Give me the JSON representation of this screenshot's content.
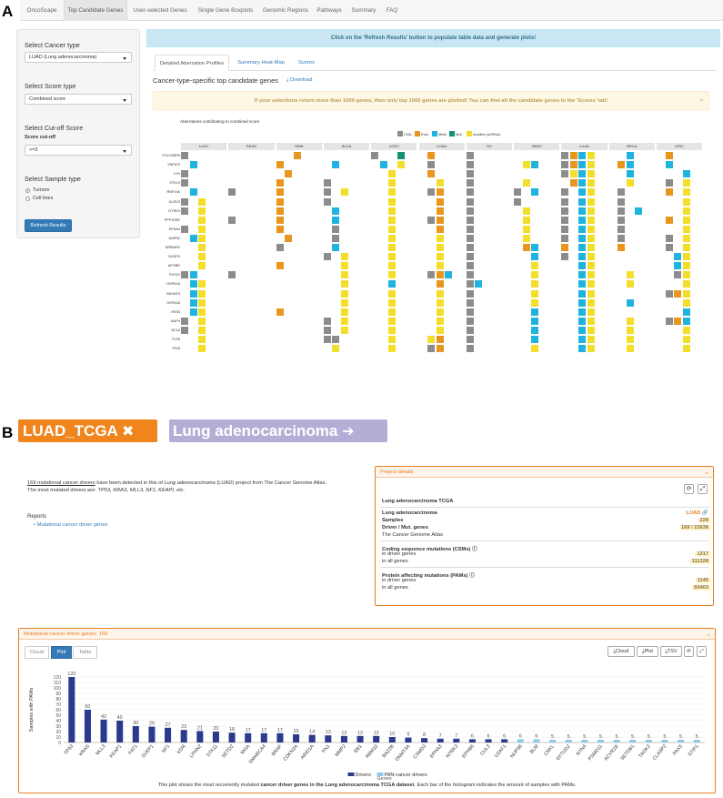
{
  "panel_a_letter": "A",
  "panel_b_letter": "B",
  "nav": [
    "OncoScape",
    "Top Candidate Genes",
    "User-selected Genes",
    "Single Gene Boxplots",
    "Genomic Regions",
    "Pathways",
    "Summary",
    "FAQ"
  ],
  "nav_active": 1,
  "sidebar": {
    "cancer_type_label": "Select Cancer type",
    "cancer_type_value": "LUAD (Lung adenocarcinoma)",
    "score_type_label": "Select Score type",
    "score_type_value": "Combined score",
    "cutoff_label": "Select Cut-off Score",
    "cutoff_sub": "Score cut-off",
    "cutoff_value": ">=3",
    "sample_type_label": "Select Sample type",
    "sample_options": [
      "Tumors",
      "Cell lines"
    ],
    "refresh_label": "Refresh Results"
  },
  "info_bar": "Click on the 'Refresh Results' button to populate table data and generate plots!",
  "subtabs": [
    "Detailed Aberration Profiles",
    "Summary Heat-Map",
    "Scores"
  ],
  "heatmap_title": "Cancer-type-specific top candidate genes",
  "download_label": "Download",
  "warning": "If your selections return more than 1000 genes, then only top 1000 genes are plotted! You can find all the candidate genes in the 'Scores' tab!",
  "warning_close": "×",
  "aberrations_title": "Aberrations contributing to combined score",
  "legend": [
    {
      "label": "CNA",
      "color": "#8c8c8c"
    },
    {
      "label": "Expr",
      "color": "#e8961e"
    },
    {
      "label": "Meth",
      "color": "#1fb4e0"
    },
    {
      "label": "Mut",
      "color": "#149173"
    },
    {
      "label": "Achilles (shRNA)",
      "color": "#f3de2c"
    }
  ],
  "cancers": [
    "LUSC",
    "READ",
    "GBM",
    "BLCA",
    "UCEC",
    "COAD",
    "OV",
    "HNSC",
    "LUAD",
    "BRCA",
    "KIRC"
  ],
  "genes": [
    "CDC42BPA",
    "ZNF679",
    "LYN",
    "STK10",
    "RNF19A",
    "GLRX3",
    "DYRK3",
    "PPP1R3D",
    "EFNA4",
    "AARS2",
    "NPBWR2",
    "DUSP4",
    "APOBR",
    "PUS10",
    "HSPA1A",
    "SDHAF3",
    "HSPA1B",
    "HES5",
    "MAP4",
    "BCL6",
    "TLR5",
    "PKIB"
  ],
  "heatmap_cells": [
    [
      0,
      0,
      0,
      "C"
    ],
    [
      2,
      0,
      2,
      "E"
    ],
    [
      4,
      0,
      0,
      "C"
    ],
    [
      4,
      0,
      3,
      "M"
    ],
    [
      5,
      0,
      1,
      "E"
    ],
    [
      6,
      0,
      0,
      "C"
    ],
    [
      8,
      0,
      0,
      "C"
    ],
    [
      8,
      0,
      1,
      "E"
    ],
    [
      8,
      0,
      2,
      "B"
    ],
    [
      8,
      0,
      3,
      "Y"
    ],
    [
      9,
      0,
      2,
      "B"
    ],
    [
      10,
      0,
      1,
      "E"
    ],
    [
      0,
      1,
      1,
      "B"
    ],
    [
      2,
      1,
      0,
      "E"
    ],
    [
      3,
      1,
      1,
      "B"
    ],
    [
      4,
      1,
      1,
      "B"
    ],
    [
      4,
      1,
      3,
      "Y"
    ],
    [
      5,
      1,
      1,
      "C"
    ],
    [
      6,
      1,
      0,
      "C"
    ],
    [
      7,
      1,
      1,
      "Y"
    ],
    [
      7,
      1,
      2,
      "B"
    ],
    [
      8,
      1,
      0,
      "C"
    ],
    [
      8,
      1,
      1,
      "E"
    ],
    [
      8,
      1,
      2,
      "B"
    ],
    [
      8,
      1,
      3,
      "Y"
    ],
    [
      9,
      1,
      1,
      "E"
    ],
    [
      9,
      1,
      2,
      "B"
    ],
    [
      10,
      1,
      1,
      "B"
    ],
    [
      0,
      2,
      0,
      "C"
    ],
    [
      2,
      2,
      1,
      "E"
    ],
    [
      4,
      2,
      2,
      "Y"
    ],
    [
      5,
      2,
      1,
      "E"
    ],
    [
      6,
      2,
      0,
      "C"
    ],
    [
      8,
      2,
      0,
      "C"
    ],
    [
      8,
      2,
      1,
      "Y"
    ],
    [
      8,
      2,
      2,
      "B"
    ],
    [
      8,
      2,
      3,
      "Y"
    ],
    [
      9,
      2,
      2,
      "B"
    ],
    [
      10,
      2,
      3,
      "B"
    ],
    [
      0,
      3,
      0,
      "C"
    ],
    [
      2,
      3,
      0,
      "E"
    ],
    [
      3,
      3,
      0,
      "C"
    ],
    [
      4,
      3,
      2,
      "Y"
    ],
    [
      5,
      3,
      2,
      "Y"
    ],
    [
      6,
      3,
      0,
      "C"
    ],
    [
      7,
      3,
      1,
      "Y"
    ],
    [
      8,
      3,
      1,
      "E"
    ],
    [
      8,
      3,
      2,
      "B"
    ],
    [
      8,
      3,
      3,
      "Y"
    ],
    [
      9,
      3,
      2,
      "Y"
    ],
    [
      10,
      3,
      1,
      "C"
    ],
    [
      10,
      3,
      3,
      "Y"
    ],
    [
      0,
      4,
      1,
      "B"
    ],
    [
      1,
      4,
      0,
      "C"
    ],
    [
      2,
      4,
      0,
      "E"
    ],
    [
      3,
      4,
      0,
      "C"
    ],
    [
      3,
      4,
      2,
      "Y"
    ],
    [
      4,
      4,
      2,
      "Y"
    ],
    [
      5,
      4,
      1,
      "C"
    ],
    [
      5,
      4,
      2,
      "E"
    ],
    [
      6,
      4,
      0,
      "C"
    ],
    [
      7,
      4,
      0,
      "C"
    ],
    [
      7,
      4,
      2,
      "B"
    ],
    [
      8,
      4,
      0,
      "C"
    ],
    [
      8,
      4,
      2,
      "B"
    ],
    [
      8,
      4,
      3,
      "Y"
    ],
    [
      9,
      4,
      1,
      "C"
    ],
    [
      10,
      4,
      1,
      "E"
    ],
    [
      10,
      4,
      3,
      "Y"
    ],
    [
      0,
      5,
      0,
      "C"
    ],
    [
      0,
      5,
      2,
      "Y"
    ],
    [
      2,
      5,
      0,
      "E"
    ],
    [
      3,
      5,
      0,
      "C"
    ],
    [
      4,
      5,
      2,
      "Y"
    ],
    [
      5,
      5,
      2,
      "E"
    ],
    [
      6,
      5,
      0,
      "C"
    ],
    [
      7,
      5,
      0,
      "C"
    ],
    [
      8,
      5,
      0,
      "C"
    ],
    [
      8,
      5,
      2,
      "B"
    ],
    [
      8,
      5,
      3,
      "Y"
    ],
    [
      9,
      5,
      1,
      "C"
    ],
    [
      10,
      5,
      3,
      "Y"
    ],
    [
      0,
      6,
      0,
      "C"
    ],
    [
      0,
      6,
      2,
      "Y"
    ],
    [
      2,
      6,
      0,
      "E"
    ],
    [
      3,
      6,
      1,
      "B"
    ],
    [
      4,
      6,
      2,
      "Y"
    ],
    [
      5,
      6,
      2,
      "E"
    ],
    [
      6,
      6,
      0,
      "C"
    ],
    [
      7,
      6,
      1,
      "Y"
    ],
    [
      8,
      6,
      0,
      "C"
    ],
    [
      8,
      6,
      2,
      "B"
    ],
    [
      8,
      6,
      3,
      "Y"
    ],
    [
      9,
      6,
      1,
      "C"
    ],
    [
      9,
      6,
      3,
      "B"
    ],
    [
      10,
      6,
      3,
      "Y"
    ],
    [
      0,
      7,
      2,
      "Y"
    ],
    [
      1,
      7,
      0,
      "C"
    ],
    [
      2,
      7,
      0,
      "E"
    ],
    [
      3,
      7,
      1,
      "B"
    ],
    [
      4,
      7,
      2,
      "Y"
    ],
    [
      5,
      7,
      1,
      "C"
    ],
    [
      5,
      7,
      2,
      "E"
    ],
    [
      6,
      7,
      0,
      "C"
    ],
    [
      7,
      7,
      1,
      "Y"
    ],
    [
      8,
      7,
      0,
      "C"
    ],
    [
      8,
      7,
      2,
      "B"
    ],
    [
      8,
      7,
      3,
      "Y"
    ],
    [
      9,
      7,
      1,
      "C"
    ],
    [
      10,
      7,
      1,
      "E"
    ],
    [
      10,
      7,
      3,
      "Y"
    ],
    [
      0,
      8,
      0,
      "C"
    ],
    [
      0,
      8,
      2,
      "Y"
    ],
    [
      2,
      8,
      0,
      "E"
    ],
    [
      3,
      8,
      1,
      "C"
    ],
    [
      4,
      8,
      2,
      "Y"
    ],
    [
      5,
      8,
      2,
      "E"
    ],
    [
      6,
      8,
      0,
      "C"
    ],
    [
      7,
      8,
      1,
      "Y"
    ],
    [
      8,
      8,
      0,
      "C"
    ],
    [
      8,
      8,
      2,
      "B"
    ],
    [
      8,
      8,
      3,
      "Y"
    ],
    [
      9,
      8,
      1,
      "C"
    ],
    [
      10,
      8,
      3,
      "Y"
    ],
    [
      0,
      9,
      1,
      "B"
    ],
    [
      0,
      9,
      2,
      "Y"
    ],
    [
      2,
      9,
      1,
      "E"
    ],
    [
      3,
      9,
      1,
      "C"
    ],
    [
      4,
      9,
      2,
      "Y"
    ],
    [
      5,
      9,
      2,
      "Y"
    ],
    [
      6,
      9,
      0,
      "C"
    ],
    [
      7,
      9,
      1,
      "Y"
    ],
    [
      8,
      9,
      0,
      "C"
    ],
    [
      8,
      9,
      2,
      "B"
    ],
    [
      8,
      9,
      3,
      "Y"
    ],
    [
      9,
      9,
      1,
      "C"
    ],
    [
      10,
      9,
      1,
      "C"
    ],
    [
      10,
      9,
      3,
      "Y"
    ],
    [
      0,
      10,
      2,
      "Y"
    ],
    [
      2,
      10,
      0,
      "C"
    ],
    [
      3,
      10,
      1,
      "B"
    ],
    [
      4,
      10,
      2,
      "Y"
    ],
    [
      5,
      10,
      2,
      "Y"
    ],
    [
      6,
      10,
      0,
      "C"
    ],
    [
      7,
      10,
      1,
      "E"
    ],
    [
      7,
      10,
      2,
      "B"
    ],
    [
      8,
      10,
      0,
      "E"
    ],
    [
      8,
      10,
      2,
      "B"
    ],
    [
      8,
      10,
      3,
      "Y"
    ],
    [
      9,
      10,
      1,
      "E"
    ],
    [
      10,
      10,
      1,
      "C"
    ],
    [
      10,
      10,
      3,
      "Y"
    ],
    [
      0,
      11,
      2,
      "Y"
    ],
    [
      3,
      11,
      0,
      "C"
    ],
    [
      3,
      11,
      2,
      "Y"
    ],
    [
      4,
      11,
      2,
      "Y"
    ],
    [
      5,
      11,
      2,
      "Y"
    ],
    [
      6,
      11,
      0,
      "C"
    ],
    [
      7,
      11,
      2,
      "B"
    ],
    [
      8,
      11,
      0,
      "C"
    ],
    [
      8,
      11,
      2,
      "B"
    ],
    [
      8,
      11,
      3,
      "Y"
    ],
    [
      10,
      11,
      2,
      "B"
    ],
    [
      10,
      11,
      3,
      "Y"
    ],
    [
      0,
      12,
      2,
      "Y"
    ],
    [
      2,
      12,
      0,
      "E"
    ],
    [
      3,
      12,
      2,
      "Y"
    ],
    [
      4,
      12,
      2,
      "Y"
    ],
    [
      5,
      12,
      2,
      "Y"
    ],
    [
      6,
      12,
      0,
      "C"
    ],
    [
      7,
      12,
      2,
      "Y"
    ],
    [
      8,
      12,
      2,
      "B"
    ],
    [
      8,
      12,
      3,
      "Y"
    ],
    [
      10,
      12,
      2,
      "B"
    ],
    [
      10,
      12,
      3,
      "Y"
    ],
    [
      0,
      13,
      0,
      "C"
    ],
    [
      0,
      13,
      1,
      "B"
    ],
    [
      1,
      13,
      0,
      "C"
    ],
    [
      3,
      13,
      2,
      "Y"
    ],
    [
      4,
      13,
      2,
      "Y"
    ],
    [
      5,
      13,
      1,
      "C"
    ],
    [
      5,
      13,
      2,
      "E"
    ],
    [
      5,
      13,
      3,
      "B"
    ],
    [
      6,
      13,
      0,
      "C"
    ],
    [
      7,
      13,
      2,
      "Y"
    ],
    [
      8,
      13,
      2,
      "B"
    ],
    [
      8,
      13,
      3,
      "Y"
    ],
    [
      9,
      13,
      2,
      "Y"
    ],
    [
      10,
      13,
      2,
      "C"
    ],
    [
      10,
      13,
      3,
      "Y"
    ],
    [
      0,
      14,
      1,
      "B"
    ],
    [
      0,
      14,
      2,
      "Y"
    ],
    [
      3,
      14,
      2,
      "Y"
    ],
    [
      4,
      14,
      2,
      "B"
    ],
    [
      5,
      14,
      2,
      "E"
    ],
    [
      6,
      14,
      1,
      "B"
    ],
    [
      6,
      14,
      0,
      "C"
    ],
    [
      7,
      14,
      2,
      "Y"
    ],
    [
      8,
      14,
      2,
      "B"
    ],
    [
      8,
      14,
      3,
      "Y"
    ],
    [
      9,
      14,
      2,
      "Y"
    ],
    [
      10,
      14,
      3,
      "Y"
    ],
    [
      0,
      15,
      1,
      "B"
    ],
    [
      0,
      15,
      2,
      "Y"
    ],
    [
      3,
      15,
      2,
      "Y"
    ],
    [
      4,
      15,
      2,
      "Y"
    ],
    [
      5,
      15,
      2,
      "Y"
    ],
    [
      6,
      15,
      0,
      "C"
    ],
    [
      7,
      15,
      2,
      "Y"
    ],
    [
      8,
      15,
      2,
      "B"
    ],
    [
      8,
      15,
      3,
      "Y"
    ],
    [
      10,
      15,
      1,
      "C"
    ],
    [
      10,
      15,
      2,
      "E"
    ],
    [
      10,
      15,
      3,
      "Y"
    ],
    [
      0,
      16,
      1,
      "B"
    ],
    [
      0,
      16,
      2,
      "Y"
    ],
    [
      3,
      16,
      2,
      "Y"
    ],
    [
      4,
      16,
      2,
      "Y"
    ],
    [
      5,
      16,
      2,
      "Y"
    ],
    [
      6,
      16,
      0,
      "C"
    ],
    [
      7,
      16,
      2,
      "Y"
    ],
    [
      8,
      16,
      2,
      "B"
    ],
    [
      8,
      16,
      3,
      "Y"
    ],
    [
      9,
      16,
      2,
      "B"
    ],
    [
      10,
      16,
      3,
      "Y"
    ],
    [
      0,
      17,
      1,
      "B"
    ],
    [
      0,
      17,
      2,
      "Y"
    ],
    [
      2,
      17,
      0,
      "E"
    ],
    [
      3,
      17,
      2,
      "Y"
    ],
    [
      4,
      17,
      2,
      "Y"
    ],
    [
      5,
      17,
      2,
      "Y"
    ],
    [
      6,
      17,
      0,
      "C"
    ],
    [
      7,
      17,
      2,
      "B"
    ],
    [
      8,
      17,
      2,
      "B"
    ],
    [
      8,
      17,
      3,
      "Y"
    ],
    [
      10,
      17,
      3,
      "B"
    ],
    [
      0,
      18,
      0,
      "C"
    ],
    [
      0,
      18,
      2,
      "Y"
    ],
    [
      3,
      18,
      0,
      "C"
    ],
    [
      3,
      18,
      2,
      "Y"
    ],
    [
      4,
      18,
      2,
      "Y"
    ],
    [
      5,
      18,
      2,
      "Y"
    ],
    [
      6,
      18,
      0,
      "C"
    ],
    [
      7,
      18,
      2,
      "B"
    ],
    [
      8,
      18,
      2,
      "B"
    ],
    [
      8,
      18,
      3,
      "Y"
    ],
    [
      9,
      18,
      2,
      "Y"
    ],
    [
      10,
      18,
      1,
      "C"
    ],
    [
      10,
      18,
      2,
      "E"
    ],
    [
      10,
      18,
      3,
      "B"
    ],
    [
      0,
      19,
      0,
      "C"
    ],
    [
      0,
      19,
      2,
      "Y"
    ],
    [
      3,
      19,
      0,
      "C"
    ],
    [
      3,
      19,
      2,
      "Y"
    ],
    [
      4,
      19,
      2,
      "Y"
    ],
    [
      5,
      19,
      2,
      "Y"
    ],
    [
      6,
      19,
      0,
      "C"
    ],
    [
      7,
      19,
      2,
      "B"
    ],
    [
      8,
      19,
      2,
      "B"
    ],
    [
      8,
      19,
      3,
      "Y"
    ],
    [
      9,
      19,
      2,
      "Y"
    ],
    [
      10,
      19,
      3,
      "Y"
    ],
    [
      0,
      20,
      2,
      "Y"
    ],
    [
      3,
      20,
      0,
      "C"
    ],
    [
      3,
      20,
      1,
      "C"
    ],
    [
      4,
      20,
      2,
      "Y"
    ],
    [
      5,
      20,
      1,
      "Y"
    ],
    [
      5,
      20,
      2,
      "E"
    ],
    [
      6,
      20,
      0,
      "C"
    ],
    [
      7,
      20,
      2,
      "B"
    ],
    [
      8,
      20,
      2,
      "B"
    ],
    [
      8,
      20,
      3,
      "Y"
    ],
    [
      9,
      20,
      2,
      "Y"
    ],
    [
      10,
      20,
      3,
      "Y"
    ],
    [
      0,
      21,
      2,
      "Y"
    ],
    [
      3,
      21,
      1,
      "Y"
    ],
    [
      4,
      21,
      2,
      "Y"
    ],
    [
      5,
      21,
      1,
      "C"
    ],
    [
      5,
      21,
      2,
      "E"
    ],
    [
      6,
      21,
      0,
      "C"
    ],
    [
      7,
      21,
      2,
      "Y"
    ],
    [
      8,
      21,
      2,
      "B"
    ],
    [
      8,
      21,
      3,
      "Y"
    ],
    [
      9,
      21,
      2,
      "Y"
    ],
    [
      10,
      21,
      3,
      "Y"
    ]
  ],
  "badges": {
    "project": "LUAD_TCGA",
    "project_icon": "✖",
    "cancer": "Lung adenocarcinoma",
    "cancer_icon": "➔"
  },
  "intro": {
    "link": "169 mutational cancer drivers",
    "text1": " have been detected in this of ",
    "italic": "Lung adenocarcinoma",
    "text2": " (LUAD) project from The Cancer Genome Atlas.",
    "line2_prefix": "The most mutated drivers are: ",
    "line2_genes": "TP53, KRAS, MLL3, NF1, KEAPI",
    "line2_suffix": ", etc."
  },
  "reports": {
    "title": "Reports",
    "item": "Mutational cancer driver genes"
  },
  "project_details": {
    "header": "Project details",
    "title": "Lung adenocarcinoma TCGA",
    "cancer_name": "Lung adenocarcinoma",
    "cancer_code": "LUAD",
    "samples_label": "Samples",
    "samples": "228",
    "driver_label": "Driver / Mut. genes",
    "driver": "169 / 22638",
    "source": "The Cancer Genome Atlas",
    "csm_label": "Coding sequence mutations (CSMs)",
    "csm_driver_label": "in driver genes",
    "csm_driver": "1317",
    "csm_all_label": "in all genes",
    "csm_all": "111328",
    "pam_label": "Protein affecting mutations (PAMs)",
    "pam_driver_label": "in driver genes",
    "pam_driver": "1145",
    "pam_all_label": "in all genes",
    "pam_all": "60403"
  },
  "mcd": {
    "header": "Mutational cancer driver genes: 169",
    "views": [
      "Cloud",
      "Plot",
      "Table"
    ],
    "tools": [
      "Cloud",
      "Plot",
      "TSV"
    ],
    "caption_pre": "This plot shows the most recurrently mutated ",
    "caption_bold": "cancer driver genes in the Lung adenocarcinoma TCGA dataset",
    "caption_post": ". Each bar of the histogram indicates the amount of samples with PAMs."
  },
  "chart_data": {
    "type": "bar",
    "ylabel": "Samples with PAMs",
    "xlabel": "Genes",
    "ylim": [
      0,
      120
    ],
    "yticks": [
      0,
      10,
      20,
      30,
      40,
      50,
      60,
      70,
      80,
      90,
      100,
      110,
      120
    ],
    "categories": [
      "TP53",
      "KRAS",
      "MLL3",
      "KEAP1",
      "FAT1",
      "SVEP1",
      "NF1",
      "KDR",
      "LPHN2",
      "STK11",
      "SETD2",
      "MGA",
      "SMARCA4",
      "BRAF",
      "CDKN2A",
      "ARID1A",
      "FN1",
      "MMP2",
      "RB1",
      "RBM10",
      "BAZ2B",
      "DNMT3A",
      "CSMD3",
      "EPHA3",
      "NTRK3",
      "EPHB6",
      "CUL3",
      "U2AF1",
      "NUP98",
      "BLM",
      "CRKL",
      "EFTUD2",
      "NTN4",
      "PSMD11",
      "ACVR1B",
      "SETDB1",
      "TAOK2",
      "CLASP2",
      "PAX5",
      "STIP1"
    ],
    "values": [
      120,
      60,
      42,
      40,
      30,
      29,
      27,
      23,
      21,
      20,
      18,
      17,
      17,
      17,
      15,
      14,
      13,
      12,
      12,
      12,
      10,
      9,
      8,
      7,
      7,
      6,
      6,
      6,
      6,
      6,
      5,
      5,
      5,
      5,
      5,
      5,
      5,
      5,
      5,
      5
    ],
    "series": [
      {
        "name": "Drivers",
        "color": "#2b3a8c"
      },
      {
        "name": "PAN-cancer drivers",
        "color": "#8ccbe8"
      }
    ],
    "pan_from_index": 28
  }
}
